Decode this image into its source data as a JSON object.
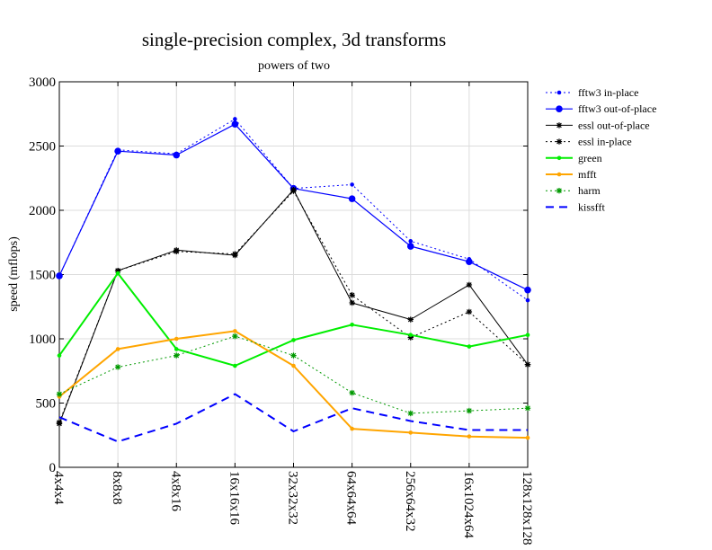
{
  "chart_data": {
    "type": "line",
    "title": "single-precision complex, 3d transforms",
    "subtitle": "powers of two",
    "xlabel": "",
    "ylabel": "speed (mflops)",
    "ylim": [
      0,
      3000
    ],
    "yticks": [
      0,
      500,
      1000,
      1500,
      2000,
      2500,
      3000
    ],
    "grid": true,
    "legend_position": "top-right-outside",
    "categories": [
      "4x4x4",
      "8x8x8",
      "4x8x16",
      "16x16x16",
      "32x32x32",
      "64x64x64",
      "256x64x32",
      "16x1024x64",
      "128x128x128"
    ],
    "series": [
      {
        "name": "fftw3 in-place",
        "color": "#0000ff",
        "dash": "2,3",
        "width": 1,
        "marker": "dot-small",
        "values": [
          1490,
          2470,
          2440,
          2710,
          2170,
          2200,
          1760,
          1620,
          1300
        ]
      },
      {
        "name": "fftw3 out-of-place",
        "color": "#0000ff",
        "dash": "",
        "width": 1.2,
        "marker": "dot-large",
        "values": [
          1490,
          2460,
          2430,
          2670,
          2170,
          2090,
          1720,
          1600,
          1380
        ]
      },
      {
        "name": "essl out-of-place",
        "color": "#000000",
        "dash": "",
        "width": 1,
        "marker": "star",
        "values": [
          340,
          1530,
          1690,
          1650,
          2160,
          1280,
          1150,
          1420,
          800
        ]
      },
      {
        "name": "essl in-place",
        "color": "#000000",
        "dash": "2,3",
        "width": 1,
        "marker": "star",
        "values": [
          350,
          1530,
          1680,
          1660,
          2150,
          1340,
          1010,
          1210,
          800
        ]
      },
      {
        "name": "green",
        "color": "#00ee00",
        "dash": "",
        "width": 2,
        "marker": "dot-small",
        "values": [
          870,
          1510,
          920,
          790,
          990,
          1110,
          1030,
          940,
          1030
        ]
      },
      {
        "name": "mfft",
        "color": "#ffa500",
        "dash": "",
        "width": 2,
        "marker": "dot-small",
        "values": [
          550,
          920,
          1000,
          1060,
          790,
          300,
          270,
          240,
          230
        ]
      },
      {
        "name": "harm",
        "color": "#009900",
        "dash": "2,3",
        "width": 1,
        "marker": "star",
        "values": [
          570,
          780,
          870,
          1020,
          870,
          580,
          420,
          440,
          460
        ]
      },
      {
        "name": "kissfft",
        "color": "#0000ff",
        "dash": "9,6",
        "width": 2,
        "marker": "none",
        "values": [
          390,
          200,
          340,
          570,
          280,
          460,
          360,
          290,
          290
        ]
      }
    ]
  }
}
